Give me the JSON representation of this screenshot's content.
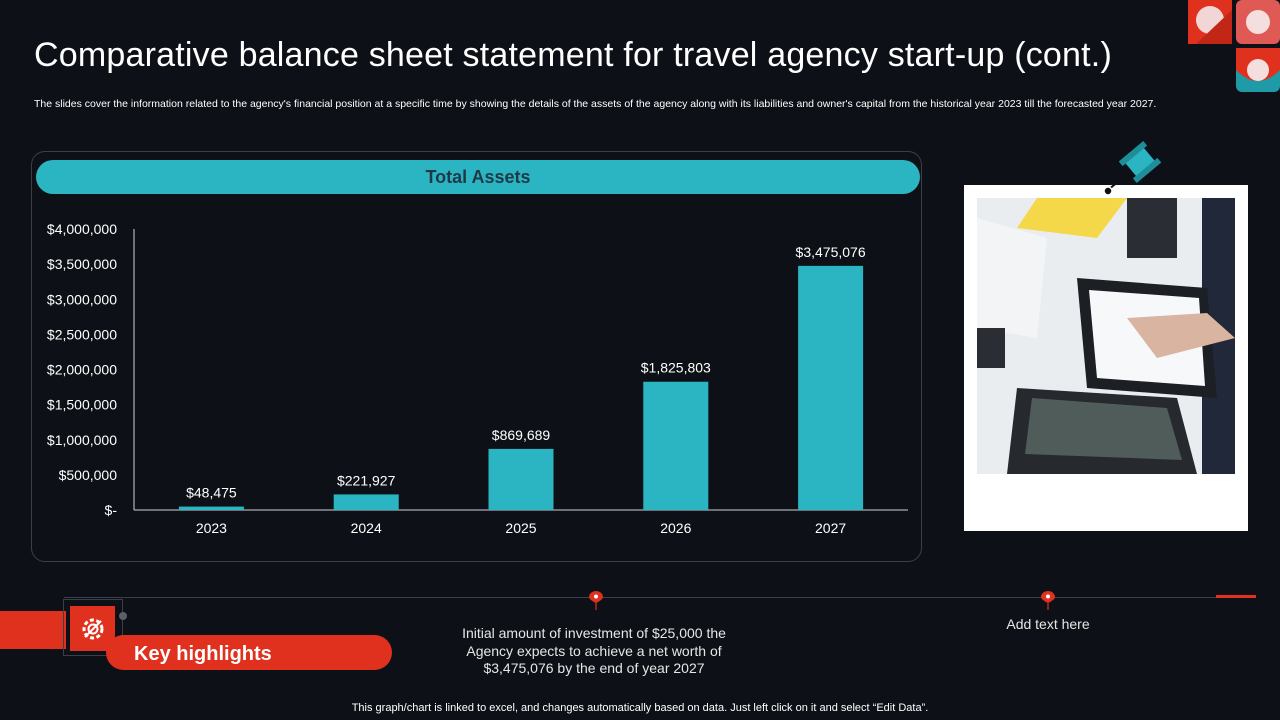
{
  "slide": {
    "title": "Comparative balance sheet statement for travel agency start-up  (cont.)",
    "subtitle": "The slides cover the information related to the agency's financial position at a specific time by showing the details of the assets of the agency along with its liabilities and owner's capital from the historical year 2023 till the forecasted year 2027."
  },
  "panel": {
    "header": "Total Assets"
  },
  "chart_data": {
    "type": "bar",
    "categories": [
      "2023",
      "2024",
      "2025",
      "2026",
      "2027"
    ],
    "values": [
      48475,
      221927,
      869689,
      1825803,
      3475076
    ],
    "data_labels": [
      "$48,475",
      "$221,927",
      "$869,689",
      "$1,825,803",
      "$3,475,076"
    ],
    "title": "Total Assets",
    "ylim": [
      0,
      4000000
    ],
    "yticks": [
      0,
      500000,
      1000000,
      1500000,
      2000000,
      2500000,
      3000000,
      3500000,
      4000000
    ],
    "ytick_labels": [
      "$-",
      "$500,000",
      "$1,000,000",
      "$1,500,000",
      "$2,000,000",
      "$2,500,000",
      "$3,000,000",
      "$3,500,000",
      "$4,000,000"
    ],
    "grid": false,
    "bar_color": "#2bb5c3"
  },
  "highlights": {
    "title": "Key highlights",
    "note_1": "Initial amount of investment of $25,000 the Agency expects to achieve a net worth of $3,475,076 by the end of year 2027",
    "note_2": "Add text here"
  },
  "footer": "This graph/chart is linked to excel,  and changes automatically based on data. Just left click on it and select “Edit Data”.",
  "colors": {
    "accent_red": "#e0301e",
    "teal": "#2bb5c3",
    "background": "#0d1117"
  },
  "icons": [
    "gear-badge-icon",
    "push-pin-icon",
    "map-marker-icon"
  ]
}
